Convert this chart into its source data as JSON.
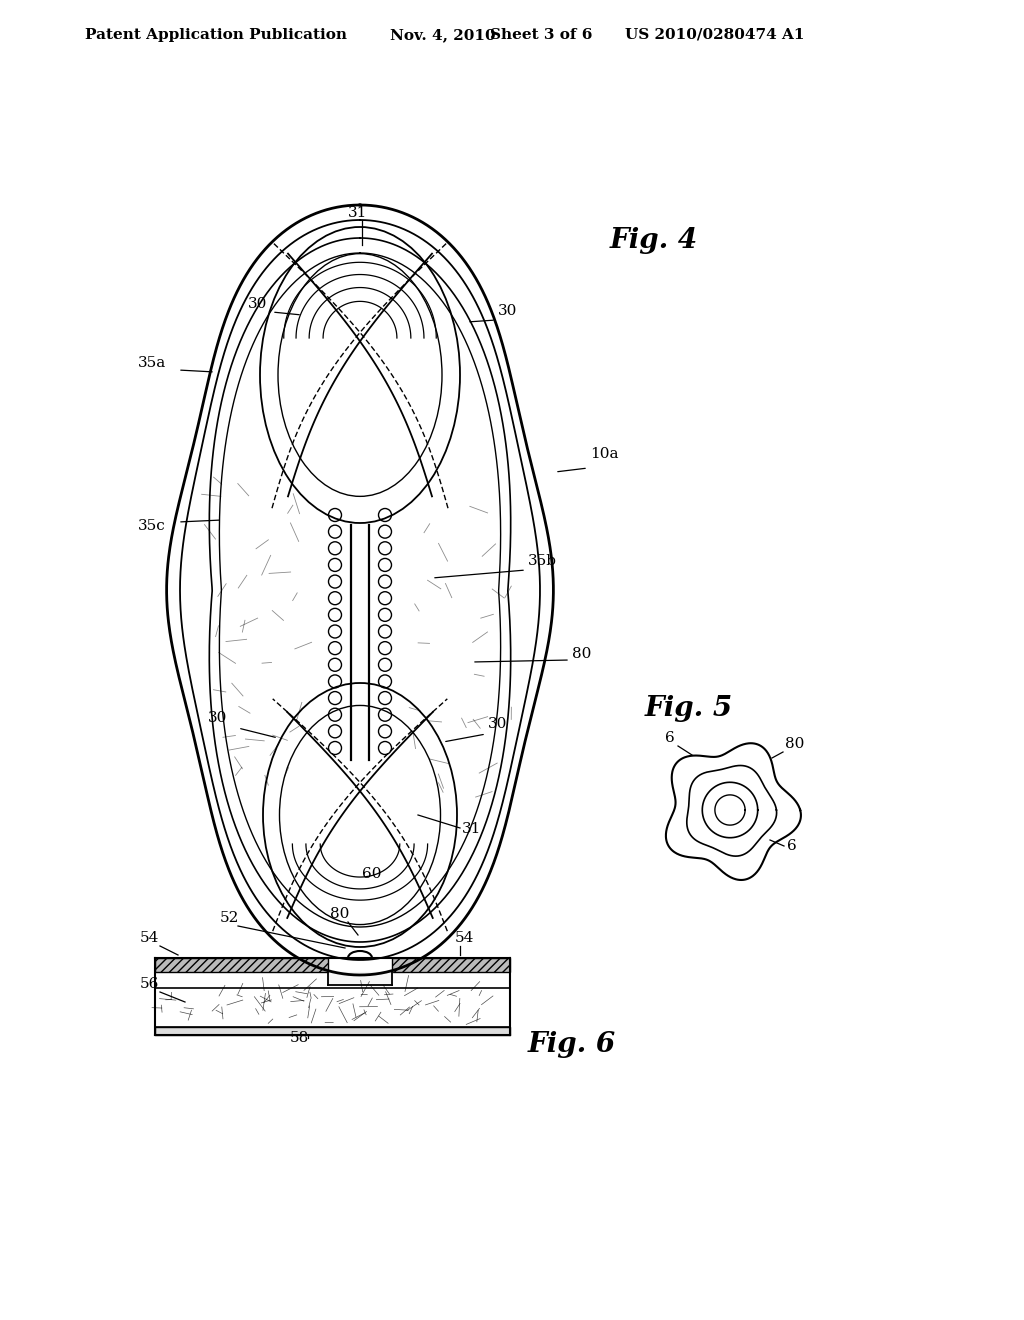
{
  "background_color": "#ffffff",
  "header_text": "Patent Application Publication",
  "header_date": "Nov. 4, 2010",
  "header_sheet": "Sheet 3 of 6",
  "header_patent": "US 2010/0280474 A1",
  "fig4_label": "Fig. 4",
  "fig5_label": "Fig. 5",
  "fig6_label": "Fig. 6",
  "line_color": "#000000",
  "line_width": 1.2,
  "fig_label_fontsize": 20,
  "annotation_fontsize": 11,
  "header_fontsize": 11
}
